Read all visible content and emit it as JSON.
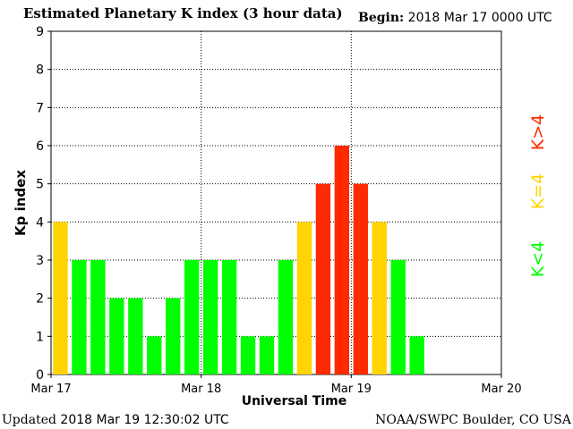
{
  "header": {
    "title": "Estimated Planetary K index (3 hour data)",
    "begin_label": "Begin:",
    "begin_value": "2018 Mar 17 0000 UTC"
  },
  "footer": {
    "updated_label": "Updated",
    "updated_value": "2018 Mar 19 12:30:02 UTC",
    "credit": "NOAA/SWPC Boulder, CO USA"
  },
  "legend": {
    "low": "K<4",
    "equal": "K=4",
    "high": "K>4"
  },
  "colors": {
    "low": "#00ff00",
    "equal": "#ffd400",
    "high": "#ff2a00",
    "grid": "#000000"
  },
  "chart_data": {
    "type": "bar",
    "title": "Estimated Planetary K index (3 hour data)",
    "xlabel": "Universal Time",
    "ylabel": "Kp index",
    "ylim": [
      0,
      9
    ],
    "yticks": [
      "0",
      "1",
      "2",
      "3",
      "4",
      "5",
      "6",
      "7",
      "8",
      "9"
    ],
    "xtick_labels": [
      "Mar 17",
      "Mar 18",
      "Mar 19",
      "Mar 20"
    ],
    "interval": "3 hour",
    "categories": [
      "Mar 17 00:00",
      "Mar 17 03:00",
      "Mar 17 06:00",
      "Mar 17 09:00",
      "Mar 17 12:00",
      "Mar 17 15:00",
      "Mar 17 18:00",
      "Mar 17 21:00",
      "Mar 18 00:00",
      "Mar 18 03:00",
      "Mar 18 06:00",
      "Mar 18 09:00",
      "Mar 18 12:00",
      "Mar 18 15:00",
      "Mar 18 18:00",
      "Mar 18 21:00",
      "Mar 19 00:00",
      "Mar 19 03:00",
      "Mar 19 06:00",
      "Mar 19 09:00"
    ],
    "values": [
      4,
      3,
      3,
      2,
      2,
      1,
      2,
      3,
      3,
      3,
      1,
      1,
      3,
      4,
      5,
      6,
      5,
      4,
      3,
      1
    ],
    "grid": true
  }
}
